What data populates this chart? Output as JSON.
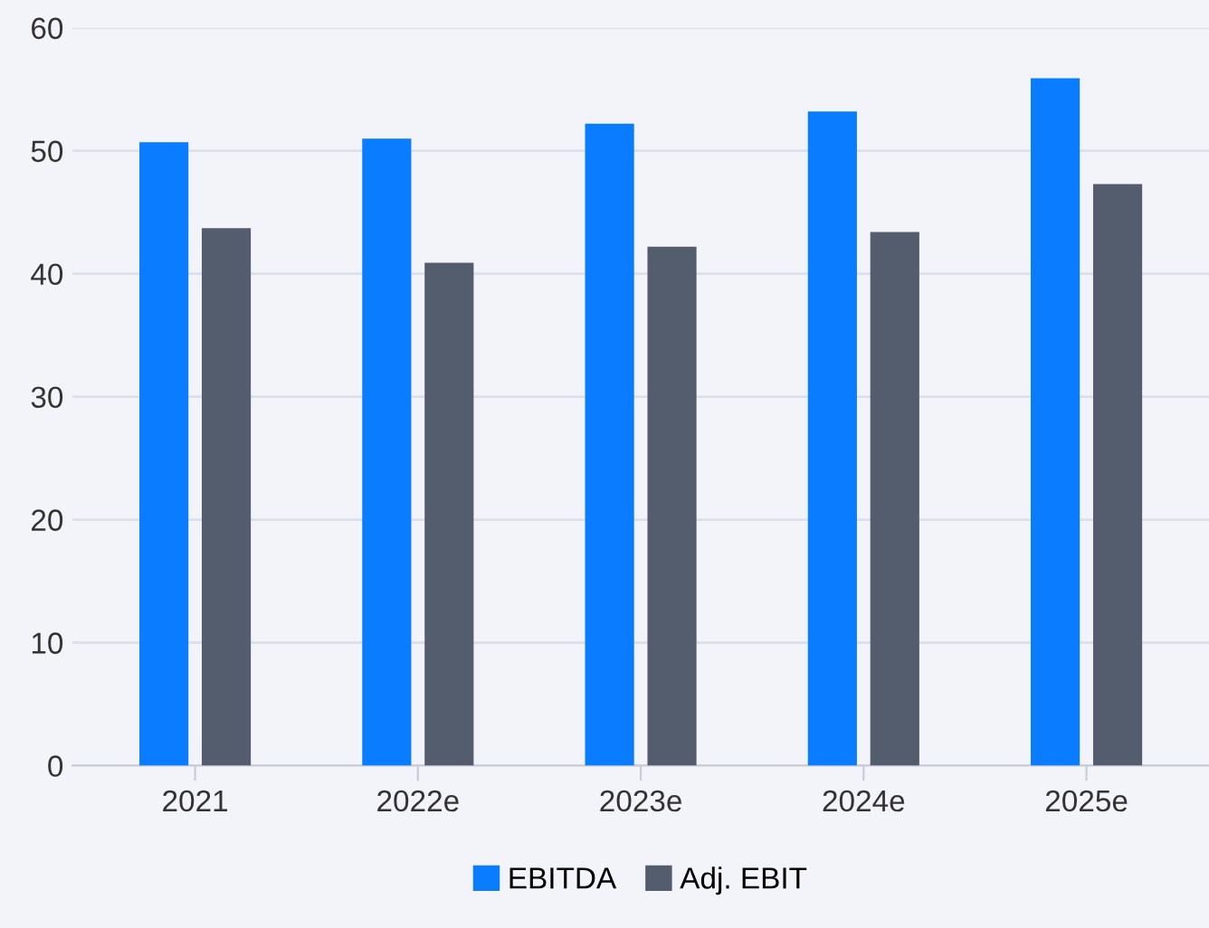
{
  "chart_data": {
    "type": "bar",
    "categories": [
      "2021",
      "2022e",
      "2023e",
      "2024e",
      "2025e"
    ],
    "series": [
      {
        "name": "EBITDA",
        "color": "#0a7cff",
        "values": [
          50.7,
          51.0,
          52.2,
          53.2,
          55.9
        ]
      },
      {
        "name": "Adj. EBIT",
        "color": "#535d6e",
        "values": [
          43.7,
          40.9,
          42.2,
          43.4,
          47.3
        ]
      }
    ],
    "ylim": [
      0,
      60
    ],
    "yticks": [
      0,
      10,
      20,
      30,
      40,
      50,
      60
    ],
    "grid": "y",
    "legend": "bottom"
  }
}
